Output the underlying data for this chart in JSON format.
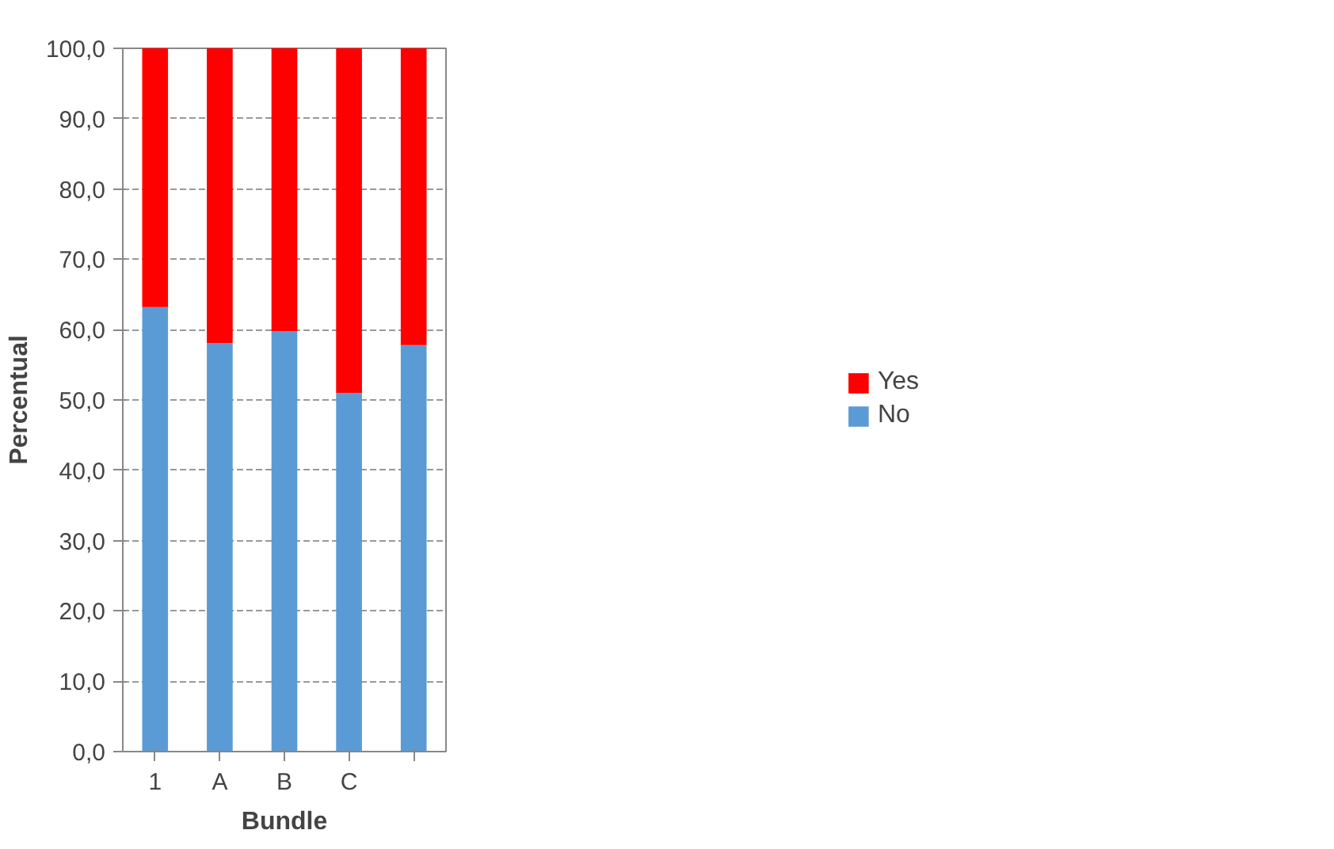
{
  "chart_data": {
    "type": "bar",
    "stacked": true,
    "xlabel": "Bundle",
    "ylabel": "Percentual",
    "categories": [
      "1",
      "A",
      "B",
      "C",
      null
    ],
    "series": [
      {
        "name": "No",
        "color": "#5b9bd5",
        "values": [
          63.2,
          58.1,
          59.8,
          51.0,
          57.8
        ]
      },
      {
        "name": "Yes",
        "color": "#ff0000",
        "values": [
          36.8,
          41.9,
          40.2,
          49.0,
          42.2
        ]
      }
    ],
    "ylim": [
      0,
      100
    ],
    "yticks": [
      {
        "value": 0,
        "label": "0,0"
      },
      {
        "value": 10,
        "label": "10,0"
      },
      {
        "value": 20,
        "label": "20,0"
      },
      {
        "value": 30,
        "label": "30,0"
      },
      {
        "value": 40,
        "label": "40,0"
      },
      {
        "value": 50,
        "label": "50,0"
      },
      {
        "value": 60,
        "label": "60,0"
      },
      {
        "value": 70,
        "label": "70,0"
      },
      {
        "value": 80,
        "label": "80,0"
      },
      {
        "value": 90,
        "label": "90,0"
      },
      {
        "value": 100,
        "label": "100,0"
      }
    ],
    "grid": "y",
    "legend": "right"
  }
}
